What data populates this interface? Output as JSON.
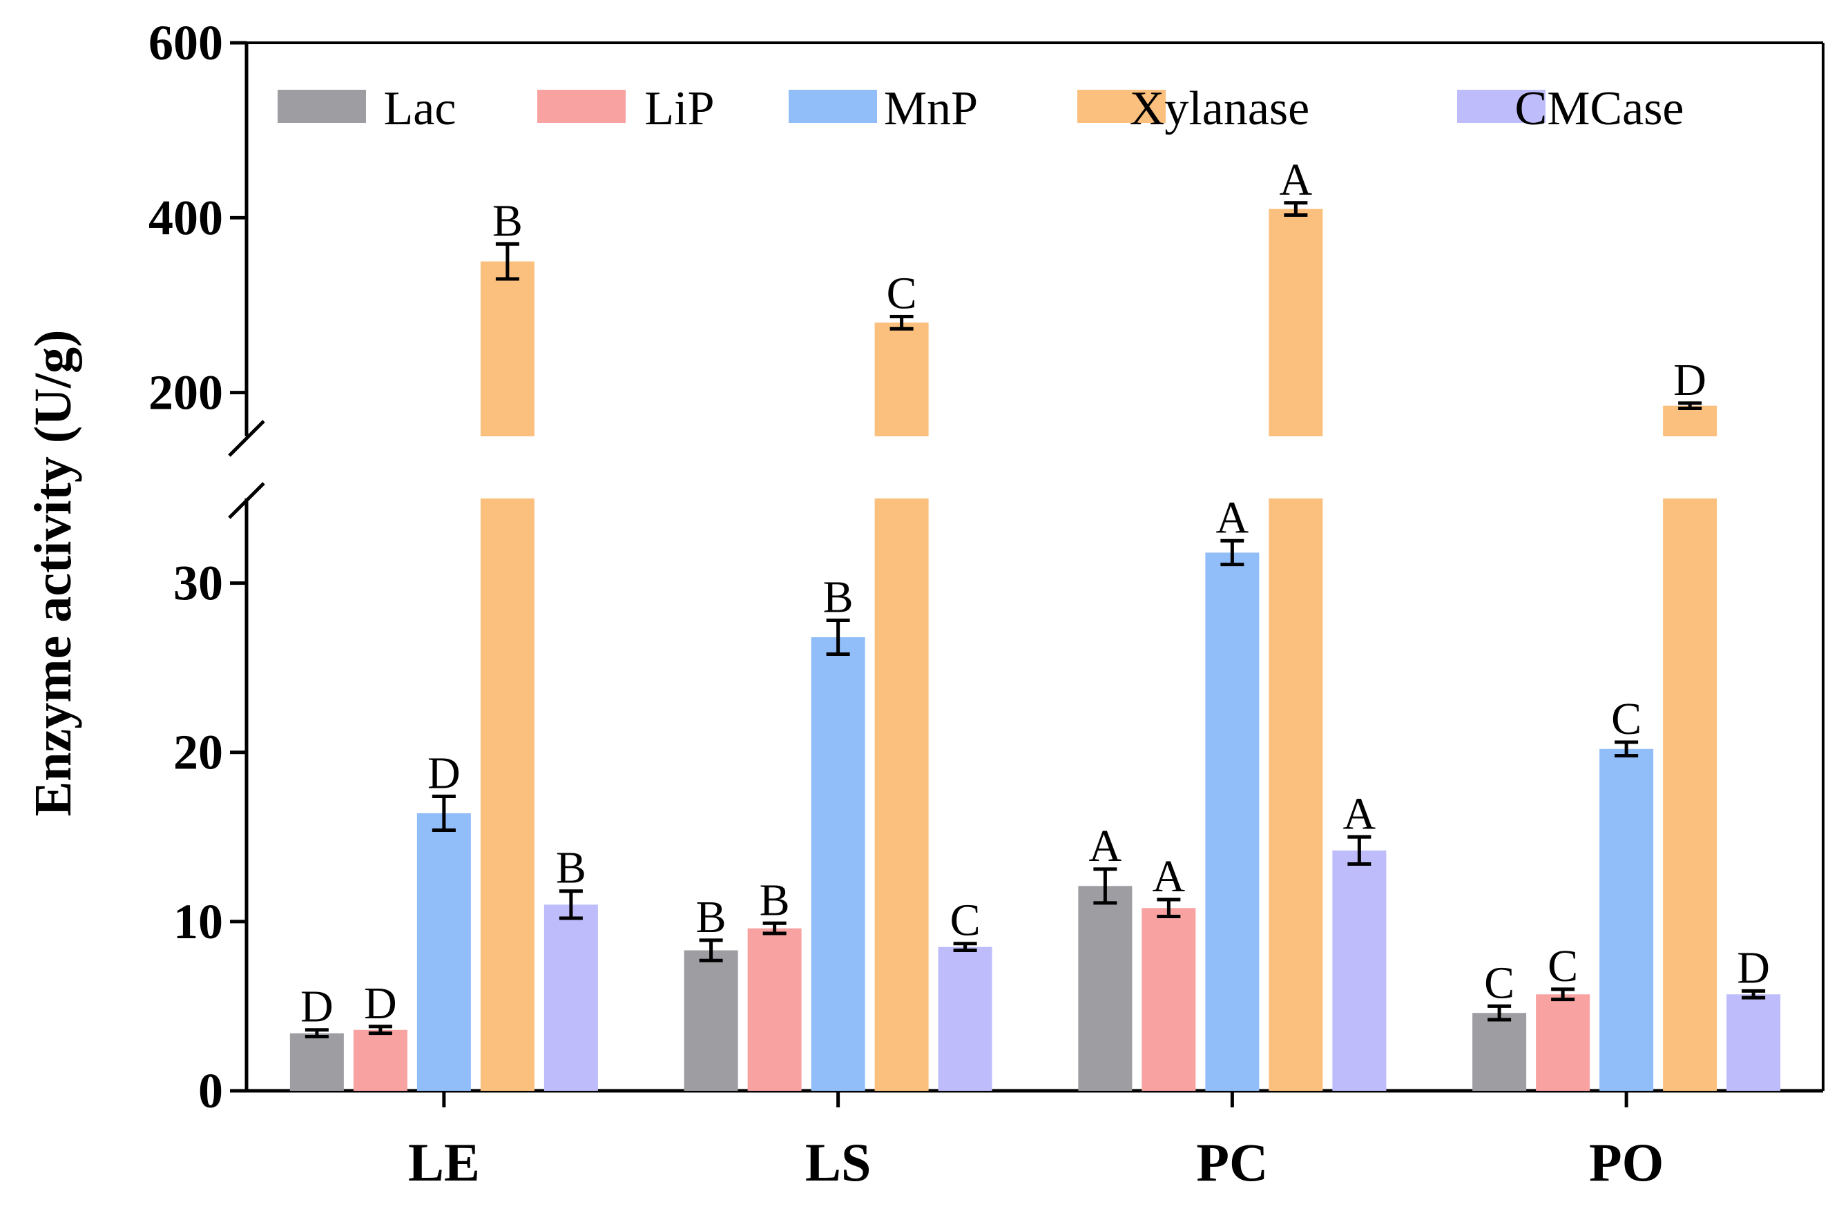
{
  "chart_data": {
    "type": "bar",
    "ylabel": "Enzyme activity (U/g)",
    "xlabel": "",
    "categories": [
      "LE",
      "LS",
      "PC",
      "PO"
    ],
    "y_axis_lower": {
      "range": [
        0,
        35
      ],
      "ticks": [
        0,
        10,
        20,
        30
      ]
    },
    "y_axis_upper": {
      "range": [
        150,
        600
      ],
      "ticks": [
        200,
        400,
        600
      ]
    },
    "axis_break": [
      35,
      150
    ],
    "legend_position": "top",
    "series": [
      {
        "name": "Lac",
        "color": "#9e9ea2",
        "values": [
          3.4,
          8.3,
          12.1,
          4.6
        ],
        "errors": [
          0.2,
          0.6,
          1.0,
          0.4
        ],
        "letters": [
          "D",
          "B",
          "A",
          "C"
        ]
      },
      {
        "name": "LiP",
        "color": "#f8a2a2",
        "values": [
          3.6,
          9.6,
          10.8,
          5.7
        ],
        "errors": [
          0.2,
          0.3,
          0.5,
          0.3
        ],
        "letters": [
          "D",
          "B",
          "A",
          "C"
        ]
      },
      {
        "name": "MnP",
        "color": "#91bef9",
        "values": [
          16.4,
          26.8,
          31.8,
          20.2
        ],
        "errors": [
          1.0,
          1.0,
          0.7,
          0.4
        ],
        "letters": [
          "D",
          "B",
          "A",
          "C"
        ]
      },
      {
        "name": "Xylanase",
        "color": "#fcc07e",
        "values": [
          350,
          280,
          410,
          185
        ],
        "errors": [
          20,
          7,
          7,
          3
        ],
        "letters": [
          "B",
          "C",
          "A",
          "D"
        ]
      },
      {
        "name": "CMCase",
        "color": "#bebcfb",
        "values": [
          11.0,
          8.5,
          14.2,
          5.7
        ],
        "errors": [
          0.8,
          0.2,
          0.8,
          0.2
        ],
        "letters": [
          "B",
          "C",
          "A",
          "D"
        ]
      }
    ]
  }
}
